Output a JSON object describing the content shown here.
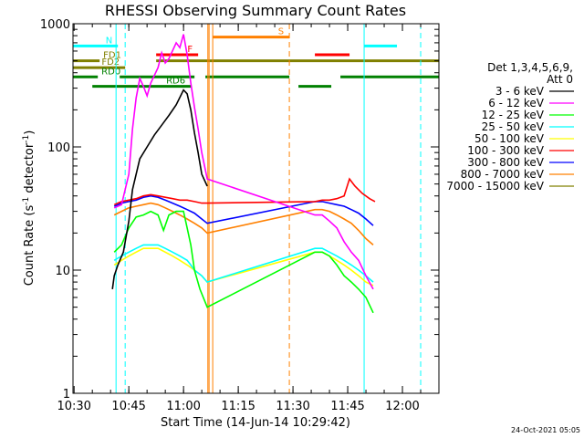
{
  "chart_data": {
    "type": "line",
    "title": "RHESSI Observing Summary Count Rates",
    "xlabel": "Start Time (14-Jun-14 10:29:42)",
    "ylabel_prefix": "Count Rate (s",
    "ylabel_sup1": "-1",
    "ylabel_mid": " detector",
    "ylabel_sup2": "-1",
    "ylabel_suffix": ")",
    "ylog": true,
    "ylim": [
      1,
      1000
    ],
    "xlim": [
      "10:29:42",
      "12:10:00"
    ],
    "x_ticks": [
      "10:30",
      "10:45",
      "11:00",
      "11:15",
      "11:30",
      "11:45",
      "12:00"
    ],
    "y_ticks": [
      "1",
      "10",
      "100",
      "1000"
    ],
    "legend_title_1": "Det 1,3,4,5,6,9,",
    "legend_title_2": "Att 0",
    "legend_placement": "right",
    "date_stamp": "24-Oct-2021 05:05",
    "series": [
      {
        "name": "3 - 6 keV",
        "color": "#000000",
        "points": [
          [
            "10:40:30",
            7
          ],
          [
            "10:41:00",
            9
          ],
          [
            "10:42:00",
            11
          ],
          [
            "10:43:30",
            14
          ],
          [
            "10:45:00",
            25
          ],
          [
            "10:46:00",
            45
          ],
          [
            "10:48:00",
            80
          ],
          [
            "10:50:00",
            100
          ],
          [
            "10:52:00",
            125
          ],
          [
            "10:54:00",
            150
          ],
          [
            "10:56:00",
            180
          ],
          [
            "10:58:00",
            220
          ],
          [
            "11:00:00",
            290
          ],
          [
            "11:01:00",
            270
          ],
          [
            "11:02:00",
            200
          ],
          [
            "11:03:00",
            130
          ],
          [
            "11:04:00",
            90
          ],
          [
            "11:05:00",
            60
          ],
          [
            "11:06:30",
            48
          ]
        ]
      },
      {
        "name": "6 - 12 keV",
        "color": "#ff00ff",
        "points": [
          [
            "10:41:00",
            32
          ],
          [
            "10:43:00",
            34
          ],
          [
            "10:45:00",
            60
          ],
          [
            "10:46:00",
            140
          ],
          [
            "10:47:00",
            250
          ],
          [
            "10:48:00",
            360
          ],
          [
            "10:49:00",
            310
          ],
          [
            "10:50:00",
            260
          ],
          [
            "10:51:00",
            330
          ],
          [
            "10:53:00",
            440
          ],
          [
            "10:54:00",
            580
          ],
          [
            "10:55:00",
            480
          ],
          [
            "10:56:00",
            520
          ],
          [
            "10:58:00",
            700
          ],
          [
            "10:59:00",
            640
          ],
          [
            "11:00:00",
            820
          ],
          [
            "11:01:00",
            560
          ],
          [
            "11:02:00",
            330
          ],
          [
            "11:03:00",
            210
          ],
          [
            "11:04:00",
            140
          ],
          [
            "11:05:00",
            90
          ],
          [
            "11:06:30",
            55
          ],
          [
            "11:36:00",
            28
          ],
          [
            "11:38:00",
            28
          ],
          [
            "11:40:00",
            25
          ],
          [
            "11:42:00",
            22
          ],
          [
            "11:44:00",
            17
          ],
          [
            "11:46:00",
            14
          ],
          [
            "11:48:00",
            12
          ],
          [
            "11:50:00",
            9
          ],
          [
            "11:52:00",
            7
          ]
        ]
      },
      {
        "name": "12 - 25 keV",
        "color": "#00ff00",
        "points": [
          [
            "10:41:00",
            14
          ],
          [
            "10:43:00",
            16
          ],
          [
            "10:45:00",
            22
          ],
          [
            "10:47:00",
            27
          ],
          [
            "10:49:00",
            28
          ],
          [
            "10:51:00",
            30
          ],
          [
            "10:53:00",
            28
          ],
          [
            "10:54:30",
            21
          ],
          [
            "10:56:00",
            28
          ],
          [
            "10:58:00",
            30
          ],
          [
            "11:00:00",
            30
          ],
          [
            "11:01:00",
            22
          ],
          [
            "11:02:00",
            16
          ],
          [
            "11:03:00",
            10
          ],
          [
            "11:04:30",
            7
          ],
          [
            "11:06:30",
            5
          ],
          [
            "11:36:00",
            14
          ],
          [
            "11:38:00",
            14
          ],
          [
            "11:40:00",
            13
          ],
          [
            "11:42:00",
            11
          ],
          [
            "11:44:00",
            9
          ],
          [
            "11:46:00",
            8
          ],
          [
            "11:48:00",
            7
          ],
          [
            "11:50:00",
            6
          ],
          [
            "11:52:00",
            4.5
          ]
        ]
      },
      {
        "name": "25 - 50 keV",
        "color": "#00ffff",
        "points": [
          [
            "10:41:00",
            12
          ],
          [
            "10:43:00",
            13
          ],
          [
            "10:45:00",
            14
          ],
          [
            "10:47:00",
            15
          ],
          [
            "10:49:00",
            16
          ],
          [
            "10:51:00",
            16
          ],
          [
            "10:53:00",
            16
          ],
          [
            "10:55:00",
            15
          ],
          [
            "10:57:00",
            14
          ],
          [
            "10:59:00",
            13
          ],
          [
            "11:01:00",
            12
          ],
          [
            "11:02:00",
            11
          ],
          [
            "11:03:00",
            10
          ],
          [
            "11:05:00",
            9
          ],
          [
            "11:06:30",
            8
          ],
          [
            "11:36:00",
            15
          ],
          [
            "11:38:00",
            15
          ],
          [
            "11:40:00",
            14
          ],
          [
            "11:42:00",
            13
          ],
          [
            "11:44:00",
            12
          ],
          [
            "11:46:00",
            11
          ],
          [
            "11:48:00",
            10
          ],
          [
            "11:50:00",
            9
          ],
          [
            "11:52:00",
            8
          ]
        ]
      },
      {
        "name": "50 - 100 keV",
        "color": "#ffff00",
        "points": [
          [
            "10:41:00",
            11
          ],
          [
            "10:43:00",
            12
          ],
          [
            "10:45:00",
            13
          ],
          [
            "10:47:00",
            14
          ],
          [
            "10:49:00",
            15
          ],
          [
            "10:51:00",
            15
          ],
          [
            "10:53:00",
            15
          ],
          [
            "10:55:00",
            14
          ],
          [
            "10:57:00",
            13
          ],
          [
            "10:59:00",
            12
          ],
          [
            "11:01:00",
            11
          ],
          [
            "11:03:00",
            10
          ],
          [
            "11:05:00",
            9
          ],
          [
            "11:06:30",
            8
          ],
          [
            "11:36:00",
            14
          ],
          [
            "11:38:00",
            14
          ],
          [
            "11:40:00",
            13
          ],
          [
            "11:42:00",
            12
          ],
          [
            "11:44:00",
            11
          ],
          [
            "11:46:00",
            10
          ],
          [
            "11:48:00",
            9
          ],
          [
            "11:50:00",
            8
          ],
          [
            "11:52:00",
            7.5
          ]
        ]
      },
      {
        "name": "100 - 300 keV",
        "color": "#ff0000",
        "points": [
          [
            "10:41:00",
            34
          ],
          [
            "10:43:00",
            36
          ],
          [
            "10:45:00",
            37
          ],
          [
            "10:47:00",
            38
          ],
          [
            "10:49:00",
            40
          ],
          [
            "10:51:00",
            41
          ],
          [
            "10:53:00",
            40
          ],
          [
            "10:55:00",
            39
          ],
          [
            "10:57:00",
            38
          ],
          [
            "10:59:00",
            37
          ],
          [
            "11:01:00",
            37
          ],
          [
            "11:03:00",
            36
          ],
          [
            "11:05:00",
            35
          ],
          [
            "11:06:30",
            35
          ],
          [
            "11:36:00",
            36
          ],
          [
            "11:38:00",
            37
          ],
          [
            "11:40:00",
            37
          ],
          [
            "11:42:00",
            38
          ],
          [
            "11:44:00",
            40
          ],
          [
            "11:45:30",
            55
          ],
          [
            "11:47:00",
            48
          ],
          [
            "11:49:00",
            42
          ],
          [
            "11:51:00",
            38
          ],
          [
            "11:52:30",
            36
          ]
        ]
      },
      {
        "name": "300 - 800 keV",
        "color": "#0000ff",
        "points": [
          [
            "10:41:00",
            33
          ],
          [
            "10:43:00",
            35
          ],
          [
            "10:45:00",
            36
          ],
          [
            "10:47:00",
            37
          ],
          [
            "10:49:00",
            39
          ],
          [
            "10:51:00",
            40
          ],
          [
            "10:53:00",
            39
          ],
          [
            "10:55:00",
            37
          ],
          [
            "10:57:00",
            35
          ],
          [
            "10:59:00",
            33
          ],
          [
            "11:01:00",
            31
          ],
          [
            "11:03:00",
            29
          ],
          [
            "11:05:00",
            26
          ],
          [
            "11:06:30",
            24
          ],
          [
            "11:36:00",
            36
          ],
          [
            "11:38:00",
            36
          ],
          [
            "11:40:00",
            35
          ],
          [
            "11:42:00",
            34
          ],
          [
            "11:44:00",
            33
          ],
          [
            "11:46:00",
            31
          ],
          [
            "11:48:00",
            29
          ],
          [
            "11:50:00",
            26
          ],
          [
            "11:52:00",
            23
          ]
        ]
      },
      {
        "name": "800 - 7000 keV",
        "color": "#ff8000",
        "points": [
          [
            "10:41:00",
            28
          ],
          [
            "10:43:00",
            30
          ],
          [
            "10:45:00",
            32
          ],
          [
            "10:47:00",
            33
          ],
          [
            "10:49:00",
            34
          ],
          [
            "10:51:00",
            35
          ],
          [
            "10:53:00",
            34
          ],
          [
            "10:55:00",
            32
          ],
          [
            "10:57:00",
            30
          ],
          [
            "10:59:00",
            28
          ],
          [
            "11:01:00",
            26
          ],
          [
            "11:03:00",
            24
          ],
          [
            "11:05:00",
            22
          ],
          [
            "11:06:30",
            20
          ],
          [
            "11:36:00",
            31
          ],
          [
            "11:38:00",
            31
          ],
          [
            "11:40:00",
            30
          ],
          [
            "11:42:00",
            28
          ],
          [
            "11:44:00",
            26
          ],
          [
            "11:46:00",
            24
          ],
          [
            "11:48:00",
            21
          ],
          [
            "11:50:00",
            18
          ],
          [
            "11:52:00",
            16
          ]
        ]
      },
      {
        "name": "7000 - 15000 keV",
        "color": "#808000",
        "points": []
      }
    ],
    "flag_bars": [
      {
        "label": "N",
        "color": "#00ffff",
        "y_level": 660,
        "segments": [
          [
            "10:29:42",
            "10:42:00"
          ],
          [
            "11:49:30",
            "11:58:30"
          ]
        ]
      },
      {
        "label": "F",
        "color": "#ff0000",
        "y_level": 560,
        "segments": [
          [
            "10:52:30",
            "11:04:00"
          ],
          [
            "11:36:00",
            "11:45:30"
          ]
        ]
      },
      {
        "label": "S",
        "color": "#ff8000",
        "y_level": 780,
        "segments": [
          [
            "11:08:00",
            "11:29:00"
          ]
        ]
      },
      {
        "label": "FD1",
        "color": "#808000",
        "y_level": 500,
        "segments": [
          [
            "10:29:42",
            "10:37:00"
          ],
          [
            "10:52:30",
            "12:10:00"
          ]
        ]
      },
      {
        "label": "FD2",
        "color": "#808000",
        "y_level": 440,
        "segments": [
          [
            "10:29:42",
            "10:44:00"
          ]
        ]
      },
      {
        "label": "RD0",
        "color": "#008000",
        "y_level": 370,
        "segments": [
          [
            "10:29:42",
            "10:36:30"
          ],
          [
            "10:42:30",
            "11:03:00"
          ],
          [
            "11:06:00",
            "11:29:00"
          ],
          [
            "11:43:00",
            "12:10:00"
          ]
        ]
      },
      {
        "label": "RD6",
        "color": "#008000",
        "y_level": 310,
        "segments": [
          [
            "10:35:00",
            "11:02:00"
          ],
          [
            "11:31:30",
            "11:40:30"
          ]
        ]
      }
    ],
    "markers": [
      {
        "time": "10:29:42",
        "color": "#00ffff",
        "style": "solid"
      },
      {
        "time": "10:41:30",
        "color": "#00ffff",
        "style": "solid"
      },
      {
        "time": "10:44:00",
        "color": "#00ffff",
        "style": "dashed"
      },
      {
        "time": "11:06:40",
        "color": "#ff8000",
        "style": "solid"
      },
      {
        "time": "11:07:00",
        "color": "#ff8000",
        "style": "solid"
      },
      {
        "time": "11:08:00",
        "color": "#ff8000",
        "style": "solid"
      },
      {
        "time": "11:29:00",
        "color": "#ff8000",
        "style": "dashed"
      },
      {
        "time": "11:49:30",
        "color": "#00ffff",
        "style": "solid"
      },
      {
        "time": "12:05:00",
        "color": "#00ffff",
        "style": "dashed"
      }
    ]
  }
}
